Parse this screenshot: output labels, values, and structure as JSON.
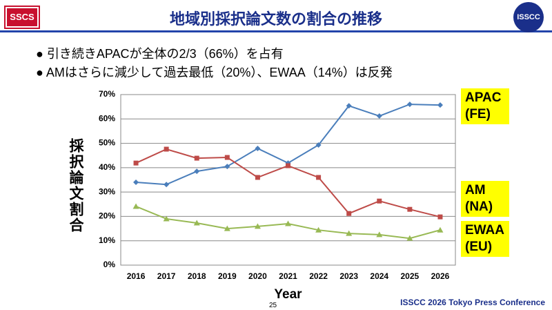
{
  "header": {
    "title": "地域別採択論文数の割合の推移",
    "logo_left": "SSCS",
    "logo_right": "ISSCC"
  },
  "bullets": [
    "引き続きAPACが全体の2/3（66%）を占有",
    "AMはさらに減少して過去最低（20%）、EWAA（14%）は反発"
  ],
  "footer": {
    "page": "25",
    "text": "ISSCC 2026 Tokyo Press Conference"
  },
  "chart_data": {
    "type": "line",
    "x_label": "Year",
    "y_label": "採択論文割合",
    "categories": [
      "2016",
      "2017",
      "2018",
      "2019",
      "2020",
      "2021",
      "2022",
      "2023",
      "2024",
      "2025",
      "2026"
    ],
    "series": [
      {
        "name": "APAC (FE)",
        "color": "#4a7ebb",
        "marker": "diamond",
        "values": [
          34.0,
          33.1,
          38.5,
          40.5,
          47.9,
          41.9,
          49.3,
          65.4,
          61.2,
          66.0,
          65.7
        ]
      },
      {
        "name": "AM (NA)",
        "color": "#be4b48",
        "marker": "square",
        "values": [
          41.9,
          47.6,
          43.9,
          44.2,
          36.0,
          40.8,
          36.0,
          21.2,
          26.3,
          22.9,
          19.8
        ]
      },
      {
        "name": "EWAA (EU)",
        "color": "#98b954",
        "marker": "triangle",
        "values": [
          24.1,
          19.0,
          17.3,
          15.0,
          15.9,
          17.0,
          14.4,
          13.0,
          12.5,
          11.0,
          14.4
        ]
      }
    ],
    "ylim": [
      0,
      70
    ],
    "yticks": [
      {
        "value": 0,
        "label": "0%"
      },
      {
        "value": 10,
        "label": "10%"
      },
      {
        "value": 20,
        "label": "20%"
      },
      {
        "value": 30,
        "label": "30%"
      },
      {
        "value": 40,
        "label": "40%"
      },
      {
        "value": 50,
        "label": "50%"
      },
      {
        "value": 60,
        "label": "60%"
      },
      {
        "value": 70,
        "label": "70%"
      }
    ],
    "grid": true
  }
}
